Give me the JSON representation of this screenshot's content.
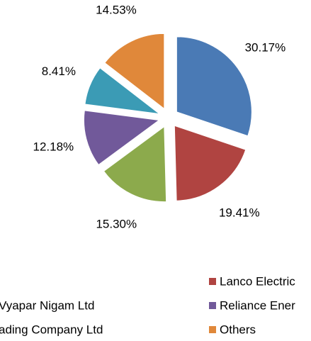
{
  "chart_data": {
    "type": "pie",
    "categories": [
      null,
      "Lanco Electric",
      "Vyapar Nigam Ltd",
      "Reliance Ener",
      "ading Company Ltd",
      "Others"
    ],
    "values": [
      30.17,
      19.41,
      15.3,
      12.18,
      8.41,
      14.53
    ],
    "value_labels": [
      "30.17%",
      "19.41%",
      "15.30%",
      "12.18%",
      "8.41%",
      "14.53%"
    ],
    "colors": [
      "#4a7ab5",
      "#b04441",
      "#8caa4c",
      "#71599a",
      "#3b9bb5",
      "#e0883a"
    ],
    "exploded": true
  }
}
